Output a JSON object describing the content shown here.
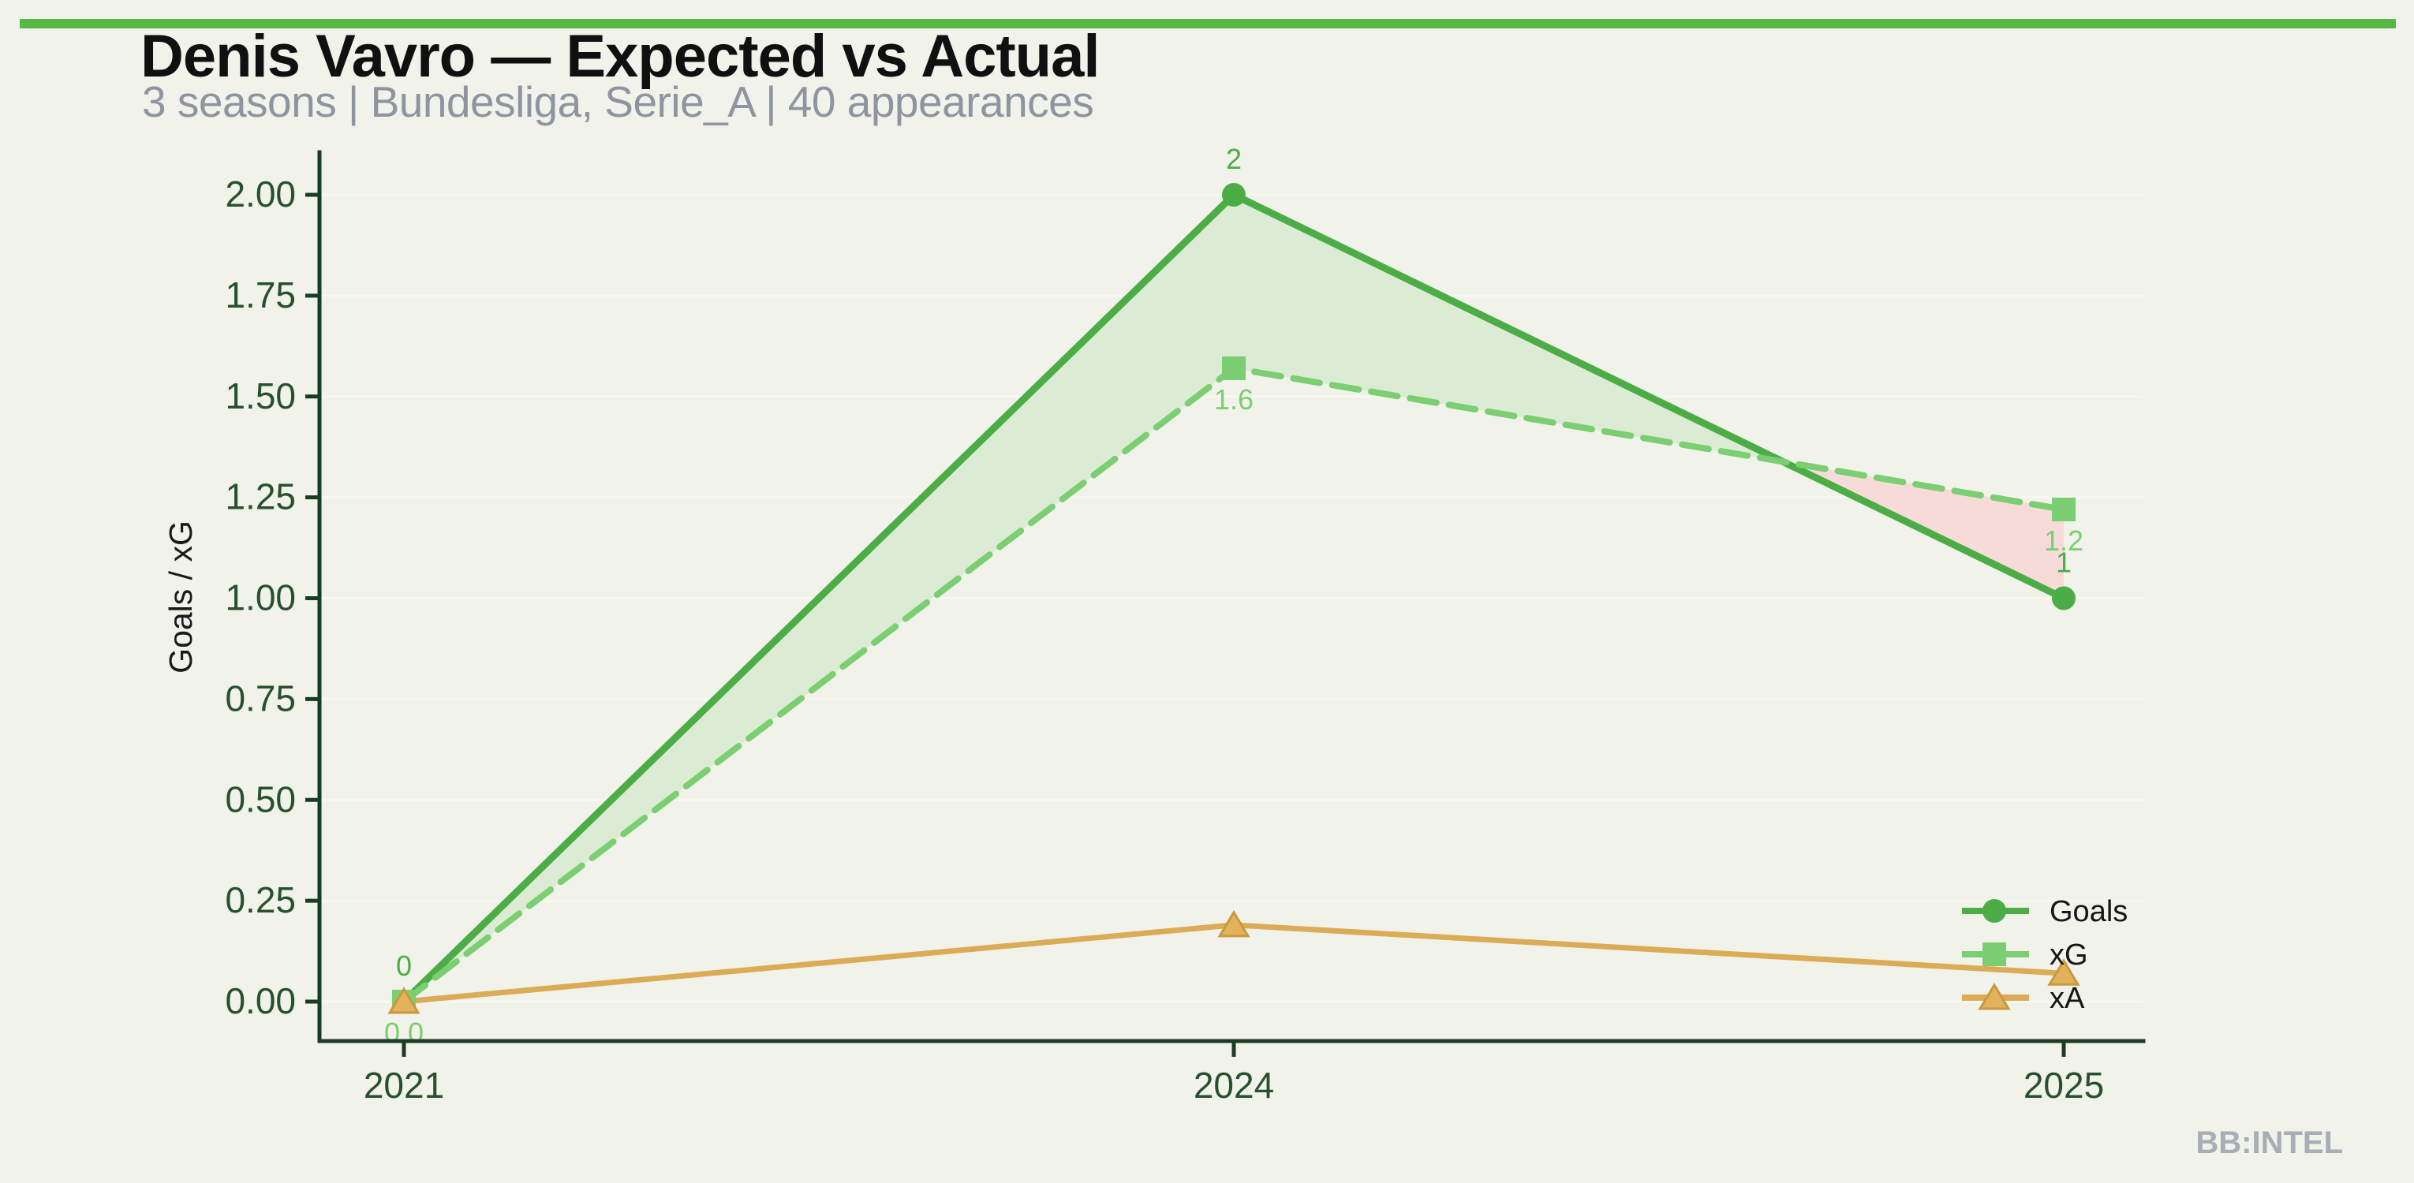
{
  "header": {
    "title": "Denis Vavro — Expected vs Actual",
    "subtitle": "3 seasons | Bundesliga, Serie_A | 40 appearances"
  },
  "watermark": "BB:INTEL",
  "colors": {
    "background": "#f1f2ea",
    "top_bar": "#58b847",
    "title": "#101010",
    "subtitle": "#8e94a0",
    "axis": "#1b3c22",
    "tick_label": "#27512c",
    "axis_title": "#1a1a1a",
    "grid": "#f8f8f1",
    "legend_text": "#161616",
    "watermark": "#a8adb6"
  },
  "chart_data": {
    "type": "line",
    "title": "Denis Vavro — Expected vs Actual",
    "subtitle": "3 seasons | Bundesliga, Serie_A | 40 appearances",
    "categories": [
      "2021",
      "2024",
      "2025"
    ],
    "series": [
      {
        "name": "Goals",
        "values": [
          0,
          2,
          1
        ],
        "color": "#4cad47",
        "line_style": "solid",
        "marker": "circle",
        "marker_fill": "#4cad47",
        "point_labels": [
          "0",
          "2",
          "1"
        ],
        "label_position": "above"
      },
      {
        "name": "xG",
        "values": [
          0.0,
          1.57,
          1.22
        ],
        "color": "#7bce72",
        "line_style": "dashed",
        "marker": "square",
        "marker_fill": "#7bce72",
        "point_labels": [
          "0.0",
          "1.6",
          "1.2"
        ],
        "label_position": "below"
      },
      {
        "name": "xA",
        "values": [
          0.0,
          0.19,
          0.07
        ],
        "color": "#dcab55",
        "line_style": "solid",
        "marker": "triangle",
        "marker_fill": "#e2b35c",
        "marker_stroke": "#c9993d",
        "point_labels": null,
        "label_position": null
      }
    ],
    "xlabel": "",
    "ylabel": "Goals / xG",
    "ylim": [
      0,
      2.0
    ],
    "ytick_step": 0.25,
    "grid": "horizontal",
    "legend_position": "lower right",
    "fill_between": {
      "upper_series": "Goals",
      "lower_series": "xG",
      "over_color": "#dcecd4",
      "under_color": "#f7dbd9"
    }
  }
}
